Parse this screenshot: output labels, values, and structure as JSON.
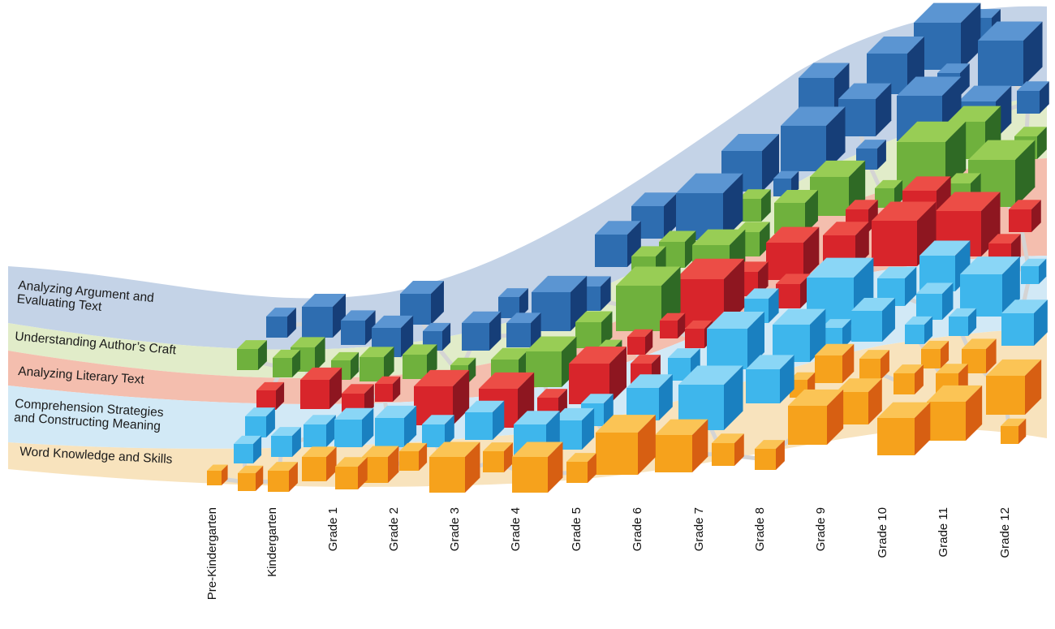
{
  "strands": [
    {
      "id": "argument",
      "lines": [
        "Analyzing Argument and",
        "Evaluating Text"
      ],
      "band_color": "#c4d3e7",
      "face": "#2e6db0",
      "right": "#163e78",
      "top": "#5b95d2"
    },
    {
      "id": "craft",
      "lines": [
        "Understanding Author’s Craft"
      ],
      "band_color": "#e1ecc9",
      "face": "#6fb13d",
      "right": "#2f6a25",
      "top": "#98cd55"
    },
    {
      "id": "literary",
      "lines": [
        "Analyzing Literary Text"
      ],
      "band_color": "#f4beae",
      "face": "#d8252b",
      "right": "#8e1620",
      "top": "#ec4d46"
    },
    {
      "id": "comprehension",
      "lines": [
        "Comprehension Strategies",
        "and Constructing Meaning"
      ],
      "band_color": "#d2e9f6",
      "face": "#3eb6ec",
      "right": "#1a80c0",
      "top": "#8ad6f6"
    },
    {
      "id": "word",
      "lines": [
        "Word Knowledge and Skills"
      ],
      "band_color": "#f8e3bd",
      "face": "#f6a21c",
      "right": "#d75f12",
      "top": "#fbc455"
    }
  ],
  "grades": [
    "Pre-Kindergarten",
    "Kindergarten",
    "Grade 1",
    "Grade 2",
    "Grade 3",
    "Grade 4",
    "Grade 5",
    "Grade 6",
    "Grade 7",
    "Grade 8",
    "Grade 9",
    "Grade 10",
    "Grade 11",
    "Grade 12"
  ],
  "colors": {
    "connector": "#d4d4d4"
  }
}
